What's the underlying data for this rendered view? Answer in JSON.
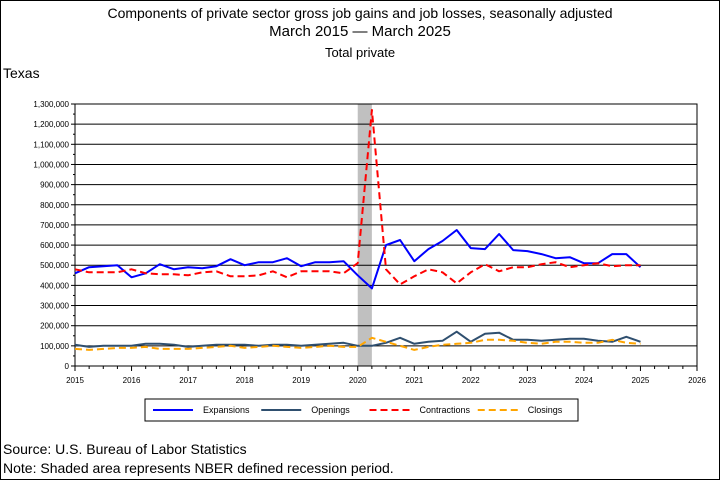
{
  "chart_data": {
    "type": "line",
    "title": "Components of private sector gross job gains and job losses, seasonally adjusted",
    "subtitle": "March 2015 — March 2025",
    "subtitle2": "Total private",
    "region": "Texas",
    "source": "Source: U.S. Bureau of Labor Statistics",
    "note": "Note: Shaded area represents NBER defined recession period.",
    "xlim": [
      2015,
      2026
    ],
    "ylim": [
      0,
      1300000
    ],
    "x_ticks": [
      2015,
      2016,
      2017,
      2018,
      2019,
      2020,
      2021,
      2022,
      2023,
      2024,
      2025,
      2026
    ],
    "x_tick_labels": [
      "2015",
      "2016",
      "2017",
      "2018",
      "2019",
      "2020",
      "2021",
      "2022",
      "2023",
      "2024",
      "2025",
      "2026"
    ],
    "y_ticks": [
      0,
      100000,
      200000,
      300000,
      400000,
      500000,
      600000,
      700000,
      800000,
      900000,
      1000000,
      1100000,
      1200000,
      1300000
    ],
    "y_tick_labels": [
      "0",
      "100,000",
      "200,000",
      "300,000",
      "400,000",
      "500,000",
      "600,000",
      "700,000",
      "800,000",
      "900,000",
      "1,000,000",
      "1,100,000",
      "1,200,000",
      "1,300,000"
    ],
    "recession": [
      2020.0,
      2020.25
    ],
    "recession_color": "#c0c0c0",
    "grid": true,
    "legend_position": "bottom",
    "x": [
      2015.0,
      2015.25,
      2015.5,
      2015.75,
      2016.0,
      2016.25,
      2016.5,
      2016.75,
      2017.0,
      2017.25,
      2017.5,
      2017.75,
      2018.0,
      2018.25,
      2018.5,
      2018.75,
      2019.0,
      2019.25,
      2019.5,
      2019.75,
      2020.0,
      2020.25,
      2020.5,
      2020.75,
      2021.0,
      2021.25,
      2021.5,
      2021.75,
      2022.0,
      2022.25,
      2022.5,
      2022.75,
      2023.0,
      2023.25,
      2023.5,
      2023.75,
      2024.0,
      2024.25,
      2024.5,
      2024.75,
      2025.0
    ],
    "series": [
      {
        "name": "Expansions",
        "color": "#0000ff",
        "style": "solid",
        "values": [
          460000,
          490000,
          495000,
          500000,
          440000,
          460000,
          505000,
          480000,
          490000,
          485000,
          495000,
          530000,
          500000,
          515000,
          515000,
          535000,
          495000,
          515000,
          515000,
          520000,
          450000,
          385000,
          600000,
          625000,
          520000,
          580000,
          620000,
          675000,
          585000,
          580000,
          655000,
          575000,
          570000,
          555000,
          535000,
          540000,
          510000,
          510000,
          555000,
          555000,
          490000
        ]
      },
      {
        "name": "Openings",
        "color": "#2f4f6f",
        "style": "solid",
        "values": [
          105000,
          95000,
          100000,
          100000,
          100000,
          110000,
          110000,
          105000,
          95000,
          100000,
          105000,
          105000,
          105000,
          100000,
          105000,
          105000,
          100000,
          105000,
          110000,
          115000,
          100000,
          100000,
          115000,
          140000,
          110000,
          120000,
          125000,
          170000,
          120000,
          160000,
          165000,
          130000,
          130000,
          125000,
          130000,
          135000,
          135000,
          125000,
          120000,
          145000,
          120000
        ]
      },
      {
        "name": "Contractions",
        "color": "#ff0000",
        "style": "dashed",
        "values": [
          480000,
          465000,
          465000,
          465000,
          480000,
          460000,
          455000,
          455000,
          450000,
          465000,
          470000,
          445000,
          445000,
          450000,
          470000,
          440000,
          470000,
          470000,
          470000,
          460000,
          510000,
          1270000,
          480000,
          405000,
          445000,
          480000,
          465000,
          410000,
          465000,
          505000,
          470000,
          490000,
          490000,
          505000,
          515000,
          490000,
          500000,
          510000,
          495000,
          500000,
          500000
        ]
      },
      {
        "name": "Closings",
        "color": "#ffa500",
        "style": "dashed",
        "values": [
          85000,
          80000,
          85000,
          90000,
          90000,
          95000,
          85000,
          85000,
          85000,
          90000,
          95000,
          100000,
          90000,
          95000,
          100000,
          95000,
          90000,
          95000,
          100000,
          95000,
          95000,
          140000,
          120000,
          100000,
          80000,
          95000,
          105000,
          110000,
          115000,
          130000,
          130000,
          125000,
          115000,
          110000,
          120000,
          120000,
          115000,
          115000,
          130000,
          115000,
          110000
        ]
      }
    ]
  }
}
